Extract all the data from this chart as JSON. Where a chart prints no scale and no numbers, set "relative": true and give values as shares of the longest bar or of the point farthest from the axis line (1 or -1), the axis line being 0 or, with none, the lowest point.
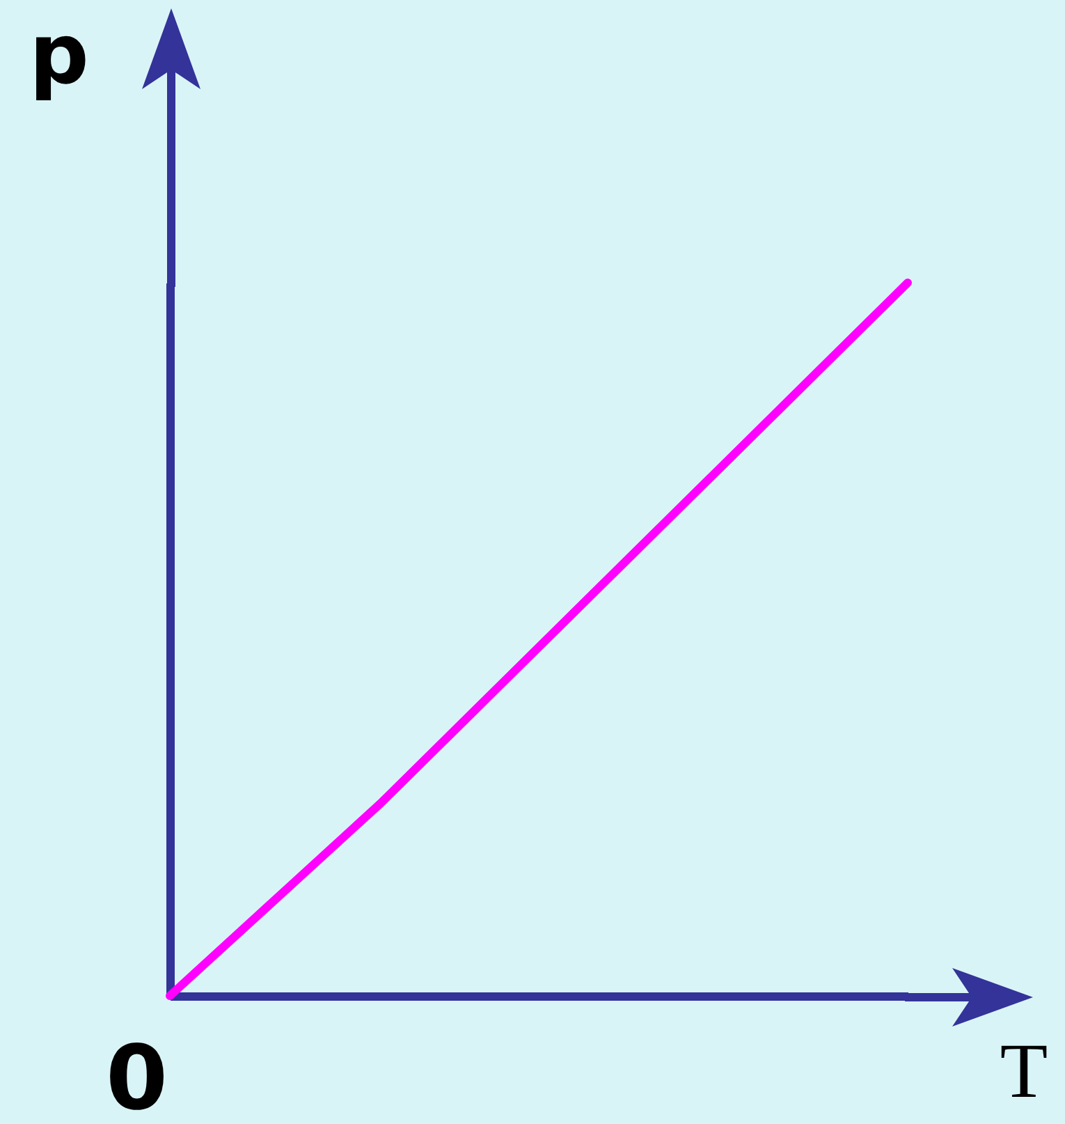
{
  "chart_data": {
    "type": "line",
    "xlabel": "T",
    "ylabel": "p",
    "relative": true,
    "grid": false,
    "legend": false,
    "categories": [
      null,
      null,
      null,
      null,
      null,
      null,
      null,
      null
    ],
    "series": [
      {
        "color": "#ff00ff",
        "values": [
          0,
          0.135,
          0.27,
          0.416,
          0.562,
          0.708,
          0.854,
          1
        ]
      }
    ],
    "annotations": [
      "0"
    ]
  }
}
